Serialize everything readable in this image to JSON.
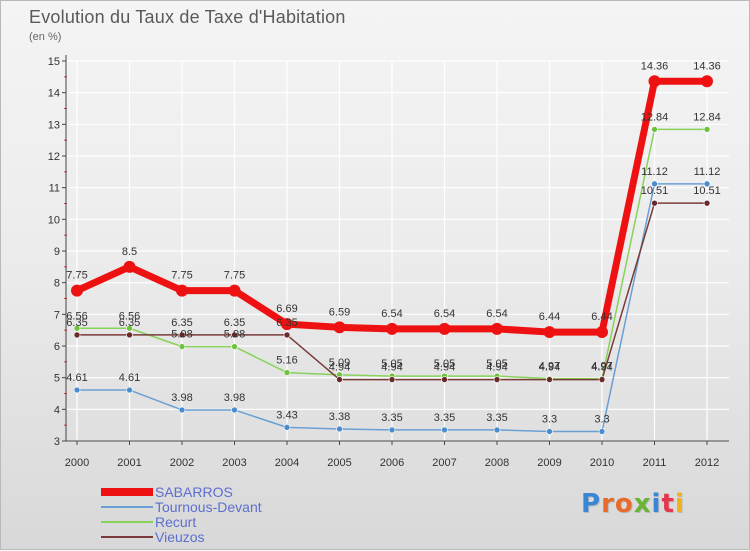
{
  "title": "Evolution du Taux de Taxe d'Habitation",
  "unit": "(en %)",
  "brand": {
    "text": "Proxiti",
    "colors": [
      "#3a86d6",
      "#e96b2b",
      "#e96b2b",
      "#69b435",
      "#3a86d6",
      "#e5364b",
      "#f0b21f"
    ]
  },
  "chart_data": {
    "type": "line",
    "categories": [
      "2000",
      "2001",
      "2002",
      "2003",
      "2004",
      "2005",
      "2006",
      "2007",
      "2008",
      "2009",
      "2010",
      "2011",
      "2012"
    ],
    "yticks": [
      "3",
      "4",
      "5",
      "6",
      "7",
      "8",
      "9",
      "10",
      "11",
      "12",
      "13",
      "14",
      "15"
    ],
    "ylim": [
      3,
      15
    ],
    "grid": true,
    "legend_position": "bottom-left",
    "series": [
      {
        "name": "Tournous-Devant",
        "color": "#6a9fd4",
        "point_color": "#4a8ccd",
        "width": 1.5,
        "values": [
          4.61,
          4.61,
          3.98,
          3.98,
          3.43,
          3.38,
          3.35,
          3.35,
          3.35,
          3.3,
          3.3,
          11.12,
          11.12
        ],
        "labels": [
          "4.61",
          "4.61",
          "3.98",
          "3.98",
          "3.43",
          "3.38",
          "3.35",
          "3.35",
          "3.35",
          "3.3",
          "3.3",
          "11.12",
          "11.12"
        ]
      },
      {
        "name": "Recurt",
        "color": "#88d15a",
        "point_color": "#6ec23f",
        "width": 1.5,
        "values": [
          6.56,
          6.56,
          5.98,
          5.98,
          5.16,
          5.09,
          5.05,
          5.05,
          5.05,
          4.97,
          4.97,
          12.84,
          12.84
        ],
        "labels": [
          "6.56",
          "6.56",
          "5.98",
          "5.98",
          "5.16",
          "5.09",
          "5.05",
          "5.05",
          "5.05",
          "4.97",
          "4.97",
          "12.84",
          "12.84"
        ]
      },
      {
        "name": "Vieuzos",
        "color": "#7a3a3a",
        "point_color": "#6a2a2a",
        "width": 1.5,
        "values": [
          6.35,
          6.35,
          6.35,
          6.35,
          6.35,
          4.94,
          4.94,
          4.94,
          4.94,
          4.94,
          4.94,
          10.51,
          10.51
        ],
        "labels": [
          "6.35",
          "6.35",
          "6.35",
          "6.35",
          "6.35",
          "4.94",
          "4.94",
          "4.94",
          "4.94",
          "4.94",
          "4.94",
          "10.51",
          "10.51"
        ]
      },
      {
        "name": "SABARROS",
        "color": "#ee1111",
        "point_color": "#ee1111",
        "width": 7,
        "values": [
          7.75,
          8.5,
          7.75,
          7.75,
          6.69,
          6.59,
          6.54,
          6.54,
          6.54,
          6.44,
          6.44,
          14.36,
          14.36
        ],
        "labels": [
          "7.75",
          "8.5",
          "7.75",
          "7.75",
          "6.69",
          "6.59",
          "6.54",
          "6.54",
          "6.54",
          "6.44",
          "6.44",
          "14.36",
          "14.36"
        ]
      }
    ],
    "legend": [
      {
        "name": "SABARROS",
        "color": "#ee1111",
        "thickness": 8
      },
      {
        "name": "Tournous-Devant",
        "color": "#6a9fd4",
        "thickness": 2
      },
      {
        "name": "Recurt",
        "color": "#88d15a",
        "thickness": 2
      },
      {
        "name": "Vieuzos",
        "color": "#7a3a3a",
        "thickness": 2
      }
    ]
  }
}
